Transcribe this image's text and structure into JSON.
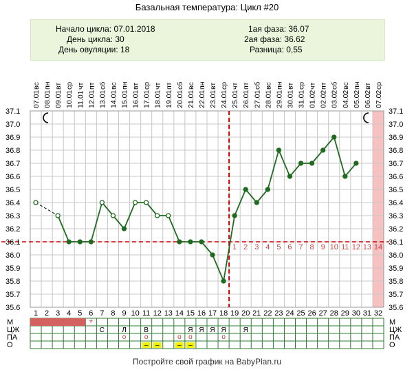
{
  "header": {
    "title": "Базальная температура: Цикл #20",
    "cycle_start": "Начало цикла: 07.01.2018",
    "cycle_day": "День цикла: 30",
    "ovulation_day": "День овуляции: 18",
    "phase1": "1ая фаза: 36.07",
    "phase2": "2ая фаза: 36.62",
    "difference": "Разница: 0,55"
  },
  "footer": {
    "text": "Постройте свой график на BabyPlan.ru"
  },
  "colors": {
    "line": "#1f6b1f",
    "point": "#1f6b1f",
    "coverline": "#cc0000",
    "luteal_numbers": "#cc4444",
    "highlight_column": "#f7c1c1",
    "menses_bar": "#d46060",
    "sex_marker": "#f0f000",
    "grid": "#c8c8c8"
  },
  "chart_data": {
    "type": "line",
    "title": "Базальная температура: Цикл #20",
    "days": [
      1,
      2,
      3,
      4,
      5,
      6,
      7,
      8,
      9,
      10,
      11,
      12,
      13,
      14,
      15,
      16,
      17,
      18,
      19,
      20,
      21,
      22,
      23,
      24,
      25,
      26,
      27,
      28,
      29,
      30,
      31,
      32
    ],
    "dates": [
      "07.01",
      "08.01",
      "09.01",
      "10.01",
      "11.01",
      "12.01",
      "13.01",
      "14.01",
      "15.01",
      "16.01",
      "17.01",
      "18.01",
      "19.01",
      "20.01",
      "21.01",
      "22.01",
      "23.01",
      "24.01",
      "25.01",
      "26.01",
      "27.01",
      "28.01",
      "29.01",
      "30.01",
      "31.01",
      "01.02",
      "02.02",
      "03.02",
      "04.02",
      "05.02",
      "06.02",
      "07.02"
    ],
    "weekdays": [
      "вс",
      "пн",
      "вт",
      "ср",
      "чт",
      "пт",
      "сб",
      "вс",
      "пн",
      "вт",
      "ср",
      "чт",
      "пт",
      "сб",
      "вс",
      "пн",
      "вт",
      "ср",
      "чт",
      "пт",
      "сб",
      "вс",
      "пн",
      "вт",
      "ср",
      "чт",
      "пт",
      "сб",
      "вс",
      "пн",
      "вт",
      "ср"
    ],
    "temperatures": [
      36.4,
      null,
      36.3,
      36.1,
      36.1,
      36.1,
      36.4,
      36.3,
      36.2,
      36.4,
      36.4,
      36.3,
      36.3,
      36.1,
      36.1,
      36.1,
      36.0,
      35.8,
      36.3,
      36.5,
      36.4,
      36.5,
      36.8,
      36.6,
      36.7,
      36.7,
      36.8,
      36.9,
      36.6,
      36.7,
      null,
      null
    ],
    "open_marker_days": [
      1,
      3,
      7,
      8,
      10,
      11,
      12,
      13
    ],
    "dashed_segments": [
      [
        1,
        3
      ]
    ],
    "ylim": [
      35.6,
      37.1
    ],
    "yticks": [
      "35.6",
      "35.7",
      "35.8",
      "35.9",
      "36.0",
      "36.1",
      "36.2",
      "36.3",
      "36.4",
      "36.5",
      "36.6",
      "36.7",
      "36.8",
      "36.9",
      "37.0",
      "37.1"
    ],
    "coverline": 36.1,
    "ovulation_day": 18,
    "luteal_numbers": [
      "1",
      "2",
      "3",
      "4",
      "5",
      "6",
      "7",
      "8",
      "9",
      "10",
      "11",
      "12",
      "13",
      "14"
    ],
    "highlighted_day": 32,
    "moon_days": [
      2,
      31
    ],
    "grid": true
  },
  "table": {
    "row_labels": [
      "М",
      "ЦЖ",
      "ПА",
      "О"
    ],
    "menses_days": [
      1,
      2,
      3,
      4,
      5
    ],
    "menses_star_day": 6,
    "menses_star_symbol": "*",
    "cervical": [
      {
        "day": 7,
        "text": "С"
      },
      {
        "day": 9,
        "text": "Л"
      },
      {
        "day": 11,
        "text": "В"
      },
      {
        "day": 15,
        "text": "Я"
      },
      {
        "day": 16,
        "text": "Я"
      },
      {
        "day": 17,
        "text": "Я"
      },
      {
        "day": 18,
        "text": "Я"
      },
      {
        "day": 20,
        "text": "Я"
      }
    ],
    "sex_days": [
      9,
      11,
      14,
      15,
      18
    ],
    "sex_symbol": "o",
    "other_days": [
      11,
      12,
      14,
      15
    ],
    "other_symbol": "–"
  }
}
